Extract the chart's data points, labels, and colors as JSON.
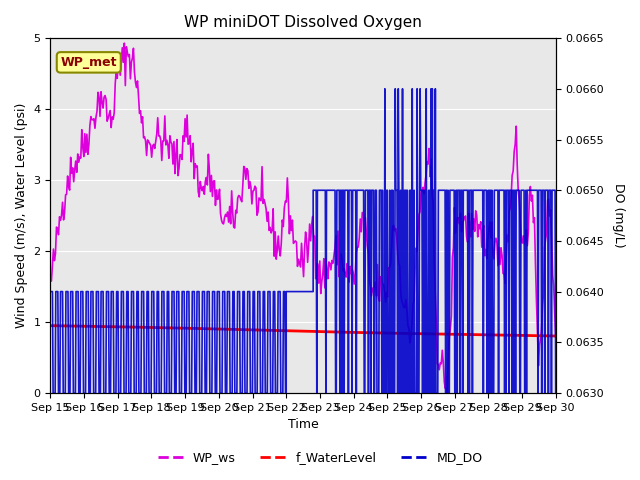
{
  "title": "WP miniDOT Dissolved Oxygen",
  "xlabel": "Time",
  "ylabel_left": "Wind Speed (m/s), Water Level (psi)",
  "ylabel_right": "DO (mg/L)",
  "xlim_start": 0,
  "xlim_end": 15,
  "ylim_left": [
    0.0,
    5.0
  ],
  "ylim_right": [
    0.063,
    0.0665
  ],
  "background_color": "#e8e8e8",
  "fig_color": "#ffffff",
  "legend_box_label": "WP_met",
  "legend_box_color": "#8B0000",
  "legend_box_bg": "#ffff99",
  "x_tick_labels": [
    "Sep 15",
    "Sep 16",
    "Sep 17",
    "Sep 18",
    "Sep 19",
    "Sep 20",
    "Sep 21",
    "Sep 22",
    "Sep 23",
    "Sep 24",
    "Sep 25",
    "Sep 26",
    "Sep 27",
    "Sep 28",
    "Sep 29",
    "Sep 30"
  ],
  "wp_ws_color": "#dd00dd",
  "f_wl_color": "#ff0000",
  "md_do_color": "#0000cc",
  "wp_ws_lw": 1.2,
  "f_wl_lw": 2.0,
  "md_do_lw": 1.2
}
